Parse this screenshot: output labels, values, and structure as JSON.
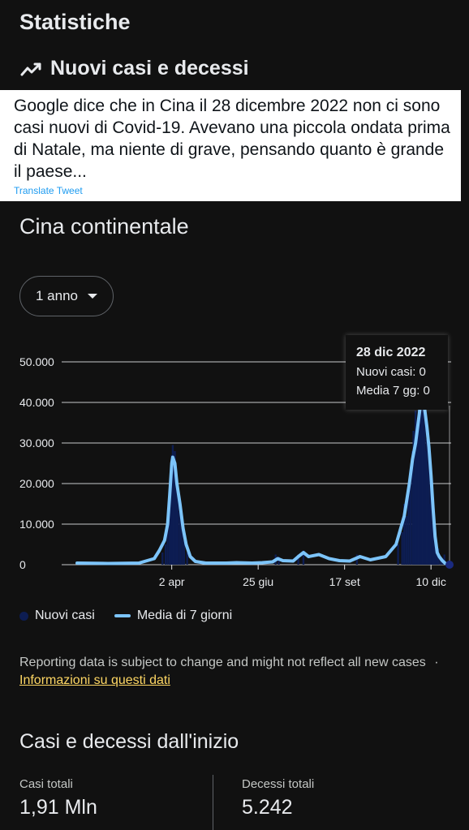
{
  "page": {
    "title": "Statistiche",
    "section_title": "Nuovi casi e decessi",
    "region": "Cina continentale",
    "range_selector": "1 anno"
  },
  "tweet": {
    "text": "Google dice che in Cina il 28 dicembre 2022 non ci sono casi nuovi di Covid-19. Avevano una piccola ondata prima di Natale, ma niente di grave, pensando quanto è grande il paese...",
    "translate_label": "Translate Tweet"
  },
  "tooltip": {
    "date": "28 dic 2022",
    "new_cases": "Nuovi casi: 0",
    "avg": "Media 7 gg: 0"
  },
  "legend": {
    "new_cases": "Nuovi casi",
    "average": "Media di 7 giorni"
  },
  "disclaimer": {
    "text": "Reporting data is subject to change and might not reflect all new cases",
    "separator": "·",
    "link": "Informazioni su questi dati"
  },
  "totals": {
    "title": "Casi e decessi dall'inizio",
    "cases_label": "Casi totali",
    "cases_value": "1,91 Mln",
    "deaths_label": "Decessi totali",
    "deaths_value": "5.242"
  },
  "colors": {
    "background": "#111111",
    "bars": "#0d1d52",
    "average_line": "#7cc4fa",
    "link": "#fdd663"
  },
  "chart_data": {
    "type": "bar",
    "xlabel": "",
    "ylabel": "",
    "ylim": [
      0,
      50000
    ],
    "y_ticks": [
      "0",
      "10.000",
      "20.000",
      "30.000",
      "40.000",
      "50.000"
    ],
    "y_tick_values": [
      0,
      10000,
      20000,
      30000,
      40000,
      50000
    ],
    "x_ticks": [
      "2 apr",
      "25 giu",
      "17 set",
      "10 dic"
    ],
    "x_tick_days": [
      92,
      176,
      260,
      344
    ],
    "x_range_days": [
      0,
      362
    ],
    "series": [
      {
        "name": "Media di 7 giorni",
        "type": "line",
        "points": [
          [
            0,
            400
          ],
          [
            30,
            300
          ],
          [
            60,
            400
          ],
          [
            75,
            1500
          ],
          [
            80,
            3500
          ],
          [
            85,
            6000
          ],
          [
            88,
            10000
          ],
          [
            90,
            17000
          ],
          [
            92,
            25000
          ],
          [
            93,
            26500
          ],
          [
            95,
            25000
          ],
          [
            97,
            20000
          ],
          [
            100,
            15000
          ],
          [
            103,
            9000
          ],
          [
            106,
            5000
          ],
          [
            110,
            2000
          ],
          [
            115,
            800
          ],
          [
            125,
            400
          ],
          [
            145,
            400
          ],
          [
            155,
            500
          ],
          [
            170,
            400
          ],
          [
            180,
            500
          ],
          [
            190,
            700
          ],
          [
            195,
            1500
          ],
          [
            200,
            1000
          ],
          [
            210,
            900
          ],
          [
            215,
            2000
          ],
          [
            220,
            3000
          ],
          [
            225,
            2000
          ],
          [
            235,
            2500
          ],
          [
            245,
            1500
          ],
          [
            255,
            1000
          ],
          [
            265,
            900
          ],
          [
            275,
            2000
          ],
          [
            285,
            1200
          ],
          [
            300,
            2000
          ],
          [
            310,
            5000
          ],
          [
            318,
            12000
          ],
          [
            323,
            20000
          ],
          [
            326,
            26000
          ],
          [
            329,
            30000
          ],
          [
            332,
            36000
          ],
          [
            334,
            40000
          ],
          [
            336,
            41000
          ],
          [
            338,
            38000
          ],
          [
            340,
            34000
          ],
          [
            342,
            29000
          ],
          [
            344,
            22000
          ],
          [
            346,
            14000
          ],
          [
            348,
            7000
          ],
          [
            350,
            3000
          ],
          [
            352,
            2000
          ],
          [
            355,
            1000
          ],
          [
            358,
            300
          ],
          [
            362,
            0
          ]
        ]
      },
      {
        "name": "Nuovi casi",
        "type": "bar",
        "points": [
          [
            83,
            3000
          ],
          [
            86,
            5000
          ],
          [
            88,
            9000
          ],
          [
            90,
            18000
          ],
          [
            91,
            22000
          ],
          [
            92,
            27000
          ],
          [
            93,
            29500
          ],
          [
            94,
            26000
          ],
          [
            95,
            28000
          ],
          [
            96,
            22000
          ],
          [
            97,
            19000
          ],
          [
            98,
            17000
          ],
          [
            100,
            13000
          ],
          [
            102,
            9000
          ],
          [
            104,
            6000
          ],
          [
            107,
            3000
          ],
          [
            193,
            2500
          ],
          [
            196,
            2000
          ],
          [
            215,
            2500
          ],
          [
            220,
            3500
          ],
          [
            272,
            2500
          ],
          [
            312,
            5000
          ],
          [
            316,
            8000
          ],
          [
            318,
            15000
          ],
          [
            320,
            12000
          ],
          [
            322,
            19000
          ],
          [
            324,
            23000
          ],
          [
            326,
            28000
          ],
          [
            327,
            33000
          ],
          [
            328,
            22000
          ],
          [
            329,
            38000
          ],
          [
            330,
            30000
          ],
          [
            331,
            35000
          ],
          [
            332,
            39500
          ],
          [
            333,
            36000
          ],
          [
            334,
            42000
          ],
          [
            335,
            37000
          ],
          [
            336,
            45000
          ],
          [
            337,
            33000
          ],
          [
            338,
            38000
          ],
          [
            339,
            28000
          ],
          [
            340,
            31000
          ],
          [
            341,
            23000
          ],
          [
            342,
            28000
          ],
          [
            343,
            15000
          ],
          [
            344,
            20000
          ],
          [
            345,
            10000
          ],
          [
            346,
            14000
          ],
          [
            347,
            5000
          ],
          [
            348,
            7000
          ],
          [
            349,
            3000
          ],
          [
            350,
            2000
          ],
          [
            351,
            4000
          ],
          [
            353,
            2000
          ],
          [
            355,
            1500
          ],
          [
            357,
            2500
          ],
          [
            360,
            500
          ],
          [
            362,
            0
          ]
        ]
      }
    ],
    "highlight_point_day": 362
  }
}
